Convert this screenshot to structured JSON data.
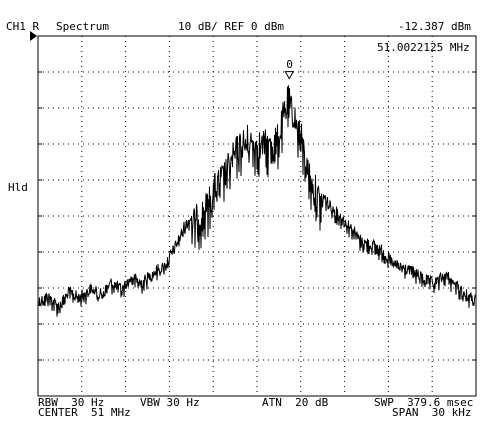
{
  "header": {
    "channel": "CH1 R",
    "mode": "Spectrum",
    "scale": "10 dB/ REF 0 dBm",
    "marker_level": "-12.387 dBm",
    "marker_freq": "51.0022125 MHz",
    "marker_label": "0"
  },
  "side": {
    "hold_label": "Hld"
  },
  "footer": {
    "rbw": "RBW  30 Hz",
    "vbw": "VBW 30 Hz",
    "atn": "ATN  20 dB",
    "swp": "SWP  379.6 msec",
    "center": "CENTER  51 MHz",
    "span": "SPAN  30 kHz"
  },
  "chart_data": {
    "type": "line",
    "title": "",
    "xlabel": "",
    "ylabel": "",
    "x_unit": "MHz",
    "y_unit": "dBm",
    "center_mhz": 51,
    "span_khz": 30,
    "ref_level_dbm": 0,
    "db_per_div": 10,
    "ylim": [
      -100,
      0
    ],
    "xlim": [
      50.985,
      51.015
    ],
    "grid": true,
    "divisions": {
      "x": 10,
      "y": 10
    },
    "marker": {
      "x": 51.0022125,
      "y": -12.387,
      "label": "0"
    },
    "series": [
      {
        "points": [
          [
            50.985,
            -71.8
          ],
          [
            50.9857,
            -70.7
          ],
          [
            50.9864,
            -73.5
          ],
          [
            50.9871,
            -69.4
          ],
          [
            50.9878,
            -71.0
          ],
          [
            50.9886,
            -68.6
          ],
          [
            50.9893,
            -70.2
          ],
          [
            50.99,
            -66.8
          ],
          [
            50.9907,
            -68.8
          ],
          [
            50.9914,
            -65.4
          ],
          [
            50.9921,
            -67.0
          ],
          [
            50.9929,
            -63.8
          ],
          [
            50.9936,
            -62.5
          ],
          [
            50.9943,
            -57.5
          ],
          [
            50.995,
            -51.4
          ],
          [
            50.9957,
            -47.1
          ],
          [
            50.9964,
            -44.2
          ],
          [
            50.9971,
            -37.8
          ],
          [
            50.9979,
            -33.3
          ],
          [
            50.9986,
            -27.2
          ],
          [
            50.9993,
            -24.4
          ],
          [
            51.0,
            -25.6
          ],
          [
            51.0007,
            -26.0
          ],
          [
            51.0014,
            -24.2
          ],
          [
            51.0021,
            -13.3
          ],
          [
            51.0029,
            -22.1
          ],
          [
            51.0036,
            -35.0
          ],
          [
            51.0043,
            -41.4
          ],
          [
            51.005,
            -45.6
          ],
          [
            51.0057,
            -48.6
          ],
          [
            51.0064,
            -51.4
          ],
          [
            51.0071,
            -55.3
          ],
          [
            51.0079,
            -56.4
          ],
          [
            51.0086,
            -58.1
          ],
          [
            51.0093,
            -61.7
          ],
          [
            51.01,
            -62.8
          ],
          [
            51.0107,
            -63.9
          ],
          [
            51.0114,
            -65.8
          ],
          [
            51.0121,
            -67.2
          ],
          [
            51.0129,
            -64.7
          ],
          [
            51.0136,
            -67.5
          ],
          [
            51.0143,
            -70.3
          ],
          [
            51.015,
            -72.2
          ]
        ]
      }
    ]
  }
}
